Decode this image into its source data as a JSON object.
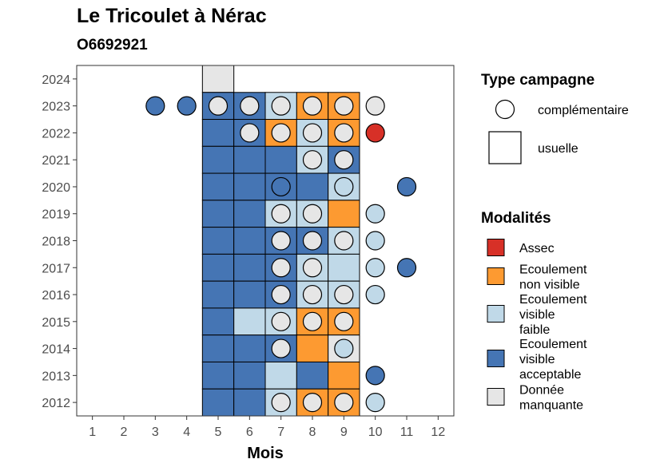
{
  "chart_data": {
    "type": "heatmap",
    "title": "Le Tricoulet à Nérac",
    "subtitle": "O6692921",
    "xlabel": "Mois",
    "ylabel": "",
    "x_ticks": [
      1,
      2,
      3,
      4,
      5,
      6,
      7,
      8,
      9,
      10,
      11,
      12
    ],
    "y_ticks": [
      2012,
      2013,
      2014,
      2015,
      2016,
      2017,
      2018,
      2019,
      2020,
      2021,
      2022,
      2023,
      2024
    ],
    "xlim": [
      0.5,
      12.5
    ],
    "ylim": [
      2011.5,
      2024.5
    ],
    "grid": false,
    "legend_placement": "right",
    "legend_shape": {
      "title": "Type campagne",
      "items": [
        {
          "key": "complementaire",
          "label": "complémentaire",
          "shape": "circle"
        },
        {
          "key": "usuelle",
          "label": "usuelle",
          "shape": "square"
        }
      ]
    },
    "legend_fill": {
      "title": "Modalités",
      "items": [
        {
          "key": "A",
          "lines": [
            "Assec"
          ],
          "color": "#d73027"
        },
        {
          "key": "N",
          "lines": [
            "Ecoulement",
            "non visible"
          ],
          "color": "#fd9a31"
        },
        {
          "key": "F",
          "lines": [
            "Ecoulement",
            "visible",
            "faible"
          ],
          "color": "#c0d9e8"
        },
        {
          "key": "V",
          "lines": [
            "Ecoulement",
            "visible",
            "acceptable"
          ],
          "color": "#4575b4"
        },
        {
          "key": "M",
          "lines": [
            "Donnée",
            "manquante"
          ],
          "color": "#e6e6e6"
        }
      ]
    },
    "usuelle": [
      {
        "year": 2024,
        "month": 5,
        "status": "M"
      },
      {
        "year": 2023,
        "month": 5,
        "status": "V"
      },
      {
        "year": 2023,
        "month": 6,
        "status": "V"
      },
      {
        "year": 2023,
        "month": 7,
        "status": "F"
      },
      {
        "year": 2023,
        "month": 8,
        "status": "N"
      },
      {
        "year": 2023,
        "month": 9,
        "status": "N"
      },
      {
        "year": 2022,
        "month": 5,
        "status": "V"
      },
      {
        "year": 2022,
        "month": 6,
        "status": "V"
      },
      {
        "year": 2022,
        "month": 7,
        "status": "N"
      },
      {
        "year": 2022,
        "month": 8,
        "status": "F"
      },
      {
        "year": 2022,
        "month": 9,
        "status": "N"
      },
      {
        "year": 2021,
        "month": 5,
        "status": "V"
      },
      {
        "year": 2021,
        "month": 6,
        "status": "V"
      },
      {
        "year": 2021,
        "month": 7,
        "status": "V"
      },
      {
        "year": 2021,
        "month": 8,
        "status": "F"
      },
      {
        "year": 2021,
        "month": 9,
        "status": "V"
      },
      {
        "year": 2020,
        "month": 5,
        "status": "V"
      },
      {
        "year": 2020,
        "month": 6,
        "status": "V"
      },
      {
        "year": 2020,
        "month": 7,
        "status": "V"
      },
      {
        "year": 2020,
        "month": 8,
        "status": "V"
      },
      {
        "year": 2020,
        "month": 9,
        "status": "F"
      },
      {
        "year": 2019,
        "month": 5,
        "status": "V"
      },
      {
        "year": 2019,
        "month": 6,
        "status": "V"
      },
      {
        "year": 2019,
        "month": 7,
        "status": "F"
      },
      {
        "year": 2019,
        "month": 8,
        "status": "F"
      },
      {
        "year": 2019,
        "month": 9,
        "status": "N"
      },
      {
        "year": 2018,
        "month": 5,
        "status": "V"
      },
      {
        "year": 2018,
        "month": 6,
        "status": "V"
      },
      {
        "year": 2018,
        "month": 7,
        "status": "V"
      },
      {
        "year": 2018,
        "month": 8,
        "status": "V"
      },
      {
        "year": 2018,
        "month": 9,
        "status": "F"
      },
      {
        "year": 2017,
        "month": 5,
        "status": "V"
      },
      {
        "year": 2017,
        "month": 6,
        "status": "V"
      },
      {
        "year": 2017,
        "month": 7,
        "status": "V"
      },
      {
        "year": 2017,
        "month": 8,
        "status": "F"
      },
      {
        "year": 2017,
        "month": 9,
        "status": "F"
      },
      {
        "year": 2016,
        "month": 5,
        "status": "V"
      },
      {
        "year": 2016,
        "month": 6,
        "status": "V"
      },
      {
        "year": 2016,
        "month": 7,
        "status": "V"
      },
      {
        "year": 2016,
        "month": 8,
        "status": "F"
      },
      {
        "year": 2016,
        "month": 9,
        "status": "F"
      },
      {
        "year": 2015,
        "month": 5,
        "status": "V"
      },
      {
        "year": 2015,
        "month": 6,
        "status": "F"
      },
      {
        "year": 2015,
        "month": 7,
        "status": "F"
      },
      {
        "year": 2015,
        "month": 8,
        "status": "N"
      },
      {
        "year": 2015,
        "month": 9,
        "status": "N"
      },
      {
        "year": 2014,
        "month": 5,
        "status": "V"
      },
      {
        "year": 2014,
        "month": 6,
        "status": "V"
      },
      {
        "year": 2014,
        "month": 7,
        "status": "V"
      },
      {
        "year": 2014,
        "month": 8,
        "status": "N"
      },
      {
        "year": 2014,
        "month": 9,
        "status": "M"
      },
      {
        "year": 2013,
        "month": 5,
        "status": "V"
      },
      {
        "year": 2013,
        "month": 6,
        "status": "V"
      },
      {
        "year": 2013,
        "month": 7,
        "status": "F"
      },
      {
        "year": 2013,
        "month": 8,
        "status": "V"
      },
      {
        "year": 2013,
        "month": 9,
        "status": "N"
      },
      {
        "year": 2012,
        "month": 5,
        "status": "V"
      },
      {
        "year": 2012,
        "month": 6,
        "status": "V"
      },
      {
        "year": 2012,
        "month": 7,
        "status": "F"
      },
      {
        "year": 2012,
        "month": 8,
        "status": "N"
      },
      {
        "year": 2012,
        "month": 9,
        "status": "N"
      }
    ],
    "complementaire": [
      {
        "year": 2023,
        "month": 3,
        "status": "V"
      },
      {
        "year": 2023,
        "month": 4,
        "status": "V"
      },
      {
        "year": 2023,
        "month": 5,
        "status": "M"
      },
      {
        "year": 2023,
        "month": 6,
        "status": "M"
      },
      {
        "year": 2023,
        "month": 7,
        "status": "M"
      },
      {
        "year": 2023,
        "month": 8,
        "status": "M"
      },
      {
        "year": 2023,
        "month": 9,
        "status": "M"
      },
      {
        "year": 2023,
        "month": 10,
        "status": "M"
      },
      {
        "year": 2022,
        "month": 6,
        "status": "M"
      },
      {
        "year": 2022,
        "month": 7,
        "status": "M"
      },
      {
        "year": 2022,
        "month": 8,
        "status": "M"
      },
      {
        "year": 2022,
        "month": 9,
        "status": "M"
      },
      {
        "year": 2022,
        "month": 10,
        "status": "A"
      },
      {
        "year": 2021,
        "month": 8,
        "status": "M"
      },
      {
        "year": 2021,
        "month": 9,
        "status": "M"
      },
      {
        "year": 2020,
        "month": 7,
        "status": "V"
      },
      {
        "year": 2020,
        "month": 9,
        "status": "F"
      },
      {
        "year": 2020,
        "month": 11,
        "status": "V"
      },
      {
        "year": 2019,
        "month": 7,
        "status": "M"
      },
      {
        "year": 2019,
        "month": 8,
        "status": "M"
      },
      {
        "year": 2019,
        "month": 10,
        "status": "F"
      },
      {
        "year": 2018,
        "month": 7,
        "status": "M"
      },
      {
        "year": 2018,
        "month": 8,
        "status": "M"
      },
      {
        "year": 2018,
        "month": 9,
        "status": "M"
      },
      {
        "year": 2018,
        "month": 10,
        "status": "F"
      },
      {
        "year": 2017,
        "month": 7,
        "status": "M"
      },
      {
        "year": 2017,
        "month": 8,
        "status": "M"
      },
      {
        "year": 2017,
        "month": 10,
        "status": "F"
      },
      {
        "year": 2017,
        "month": 11,
        "status": "V"
      },
      {
        "year": 2016,
        "month": 7,
        "status": "M"
      },
      {
        "year": 2016,
        "month": 8,
        "status": "M"
      },
      {
        "year": 2016,
        "month": 9,
        "status": "M"
      },
      {
        "year": 2016,
        "month": 10,
        "status": "F"
      },
      {
        "year": 2015,
        "month": 7,
        "status": "M"
      },
      {
        "year": 2015,
        "month": 8,
        "status": "M"
      },
      {
        "year": 2015,
        "month": 9,
        "status": "M"
      },
      {
        "year": 2014,
        "month": 7,
        "status": "M"
      },
      {
        "year": 2014,
        "month": 9,
        "status": "F"
      },
      {
        "year": 2013,
        "month": 10,
        "status": "V"
      },
      {
        "year": 2012,
        "month": 7,
        "status": "M"
      },
      {
        "year": 2012,
        "month": 8,
        "status": "M"
      },
      {
        "year": 2012,
        "month": 9,
        "status": "M"
      },
      {
        "year": 2012,
        "month": 10,
        "status": "F"
      }
    ]
  }
}
